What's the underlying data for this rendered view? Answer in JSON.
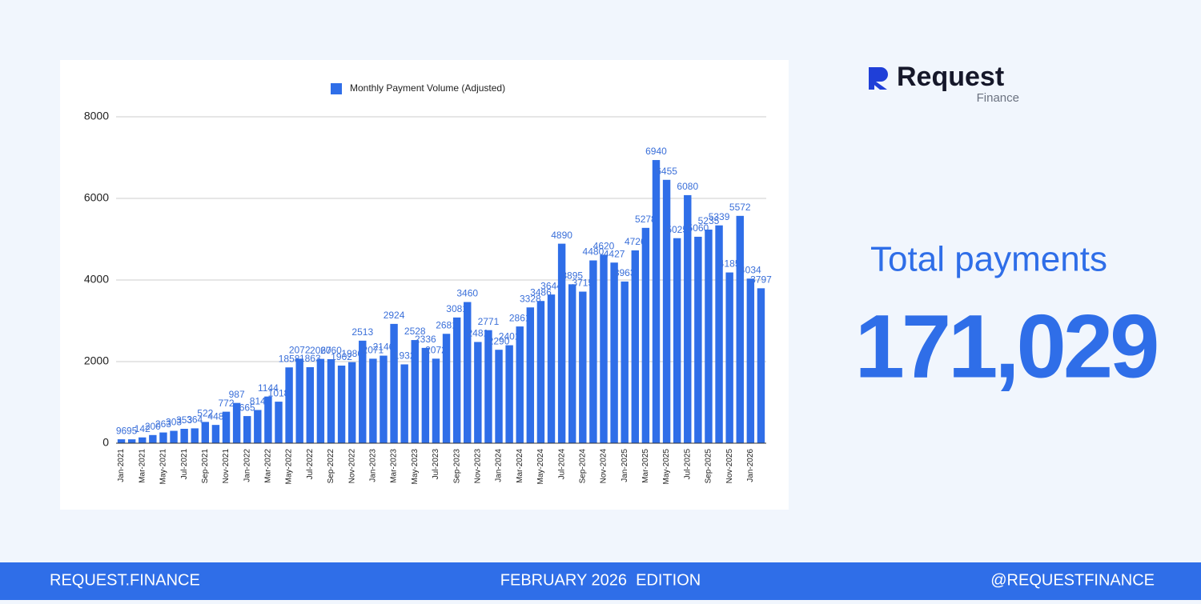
{
  "brand": {
    "name": "Request",
    "sub": "Finance"
  },
  "stat": {
    "label": "Total payments",
    "value": "171,029"
  },
  "footer": {
    "left": "REQUEST.FINANCE",
    "center": "FEBRUARY 2026  EDITION",
    "right": "@REQUESTFINANCE"
  },
  "chart_data": {
    "type": "bar",
    "legend": "top",
    "grid": true,
    "categories": [
      "Jan-2021",
      null,
      "Mar-2021",
      null,
      "May-2021",
      null,
      "Jul-2021",
      null,
      "Sep-2021",
      null,
      "Nov-2021",
      null,
      "Jan-2022",
      null,
      "Mar-2022",
      null,
      "May-2022",
      null,
      "Jul-2022",
      null,
      "Sep-2022",
      null,
      "Nov-2022",
      null,
      "Jan-2023",
      null,
      "Mar-2023",
      null,
      "May-2023",
      null,
      "Jul-2023",
      null,
      "Sep-2023",
      null,
      "Nov-2023",
      null,
      "Jan-2024",
      null,
      "Mar-2024",
      null,
      "May-2024",
      null,
      "Jul-2024",
      null,
      "Sep-2024",
      null,
      "Nov-2024",
      null,
      "Jan-2025",
      null,
      "Mar-2025",
      null,
      "May-2025",
      null,
      "Jul-2025",
      null,
      "Sep-2025",
      null,
      "Nov-2025",
      null,
      "Jan-2026",
      null
    ],
    "series": [
      {
        "name": "Monthly Payment Volume (Adjusted)",
        "color": "#2f6ee8",
        "values": [
          96,
          95,
          142,
          200,
          263,
          303,
          353,
          364,
          522,
          448,
          772,
          987,
          665,
          814,
          1144,
          1018,
          1858,
          2072,
          1863,
          2067,
          2060,
          1902,
          1986,
          2513,
          2071,
          2146,
          2924,
          1932,
          2528,
          2336,
          2072,
          2681,
          3081,
          3460,
          2481,
          2771,
          2290,
          2401,
          2861,
          3328,
          3486,
          3644,
          4890,
          3895,
          3715,
          4480,
          4620,
          4427,
          3963,
          4726,
          5278,
          6940,
          6455,
          5025,
          6080,
          5060,
          5235,
          5339,
          4185,
          5572,
          4034,
          3797
        ]
      }
    ],
    "ylim": [
      0,
      8000
    ],
    "yticks": [
      0,
      2000,
      4000,
      6000,
      8000
    ]
  }
}
